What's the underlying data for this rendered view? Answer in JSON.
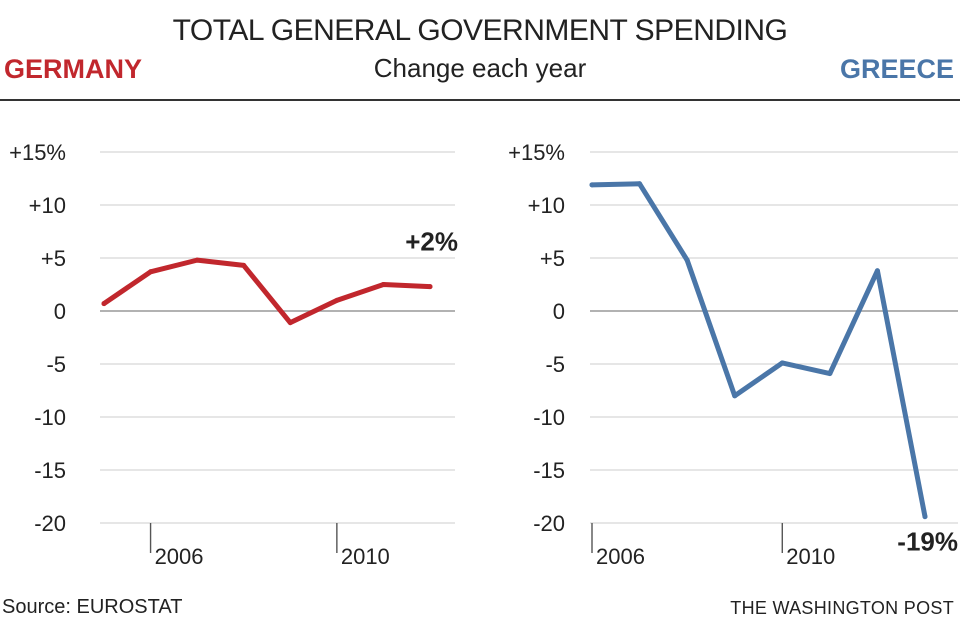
{
  "header": {
    "title": "TOTAL GENERAL GOVERNMENT SPENDING",
    "subtitle": "Change each year"
  },
  "footer": {
    "source": "Source: EUROSTAT",
    "credit": "THE WASHINGTON POST"
  },
  "colors": {
    "germany": "#c1272d",
    "greece": "#4a76a8",
    "grid": "#cccccc",
    "zero": "#999999"
  },
  "chart_data": [
    {
      "type": "line",
      "title": "GERMANY",
      "x": [
        2005,
        2006,
        2007,
        2008,
        2009,
        2010,
        2011,
        2012
      ],
      "values": [
        0.7,
        3.7,
        4.8,
        4.3,
        -1.1,
        1.0,
        2.5,
        2.3
      ],
      "ylim": [
        -20,
        15
      ],
      "yticks": [
        15,
        10,
        5,
        0,
        -5,
        -10,
        -15,
        -20
      ],
      "ytick_labels": [
        "+15%",
        "+10",
        "+5",
        "0",
        "-5",
        "-10",
        "-15",
        "-20"
      ],
      "xticks": [
        2006,
        2010
      ],
      "xtick_labels": [
        "2006",
        "2010"
      ],
      "end_label": "+2%"
    },
    {
      "type": "line",
      "title": "GREECE",
      "x": [
        2006,
        2007,
        2008,
        2009,
        2010,
        2011,
        2012,
        2013
      ],
      "values": [
        11.9,
        12.0,
        4.8,
        -8.0,
        -4.9,
        -5.9,
        3.8,
        -19.4
      ],
      "ylim": [
        -20,
        15
      ],
      "yticks": [
        15,
        10,
        5,
        0,
        -5,
        -10,
        -15,
        -20
      ],
      "ytick_labels": [
        "+15%",
        "+10",
        "+5",
        "0",
        "-5",
        "-10",
        "-15",
        "-20"
      ],
      "xticks": [
        2006,
        2010
      ],
      "xtick_labels": [
        "2006",
        "2010"
      ],
      "end_label": "-19%"
    }
  ]
}
